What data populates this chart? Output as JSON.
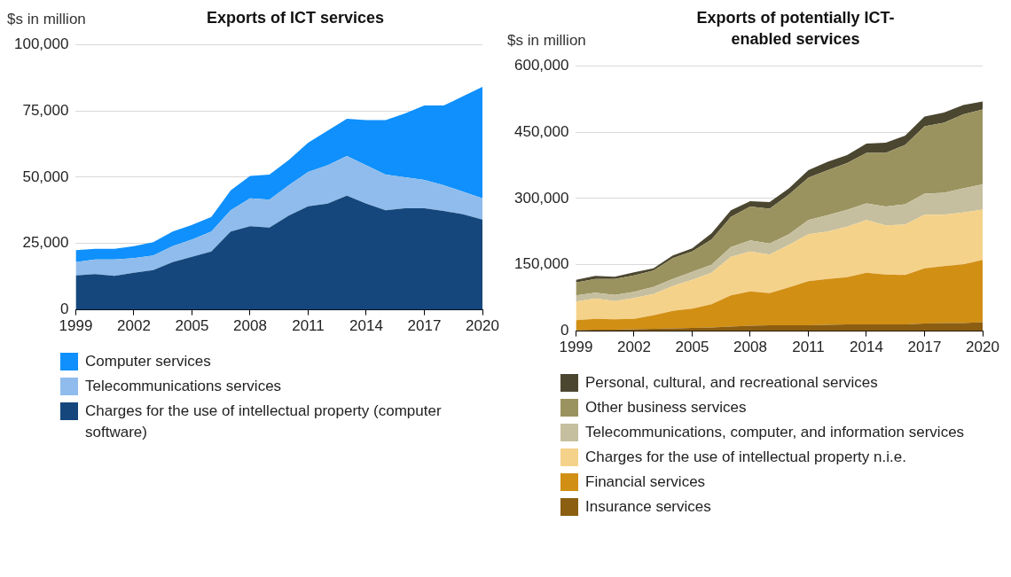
{
  "chart_data": [
    {
      "type": "area",
      "title": "Exports of ICT services",
      "ylabel": "$s in million",
      "x": [
        1999,
        2000,
        2001,
        2002,
        2003,
        2004,
        2005,
        2006,
        2007,
        2008,
        2009,
        2010,
        2011,
        2012,
        2013,
        2014,
        2015,
        2016,
        2017,
        2018,
        2019,
        2020
      ],
      "stacked": true,
      "xlim": [
        1999,
        2020
      ],
      "xticks": [
        1999,
        2002,
        2005,
        2008,
        2011,
        2014,
        2017,
        2020
      ],
      "ylim": [
        0,
        100000
      ],
      "yticks": [
        {
          "value": 0,
          "label": "0"
        },
        {
          "value": 25000,
          "label": "25,000"
        },
        {
          "value": 50000,
          "label": "50,000"
        },
        {
          "value": 75000,
          "label": "75,000"
        },
        {
          "value": 100000,
          "label": "100,000"
        }
      ],
      "grid": "y",
      "legend": "bottom",
      "series": [
        {
          "name": "Charges for the use of intellectual property (computer software)",
          "color": "#15477c",
          "values": [
            13000,
            13500,
            12800,
            14000,
            15000,
            18000,
            20000,
            22000,
            29500,
            31500,
            31000,
            35500,
            39000,
            40000,
            43000,
            40000,
            37500,
            38300,
            38300,
            37300,
            36000,
            34000
          ]
        },
        {
          "name": "Telecommunications services",
          "color": "#8fbcec",
          "values": [
            5000,
            5500,
            6200,
            5500,
            5500,
            6000,
            6500,
            7500,
            8000,
            10500,
            10500,
            11500,
            13000,
            14500,
            15000,
            14500,
            13500,
            11700,
            10700,
            9700,
            8500,
            8000
          ]
        },
        {
          "name": "Computer services",
          "color": "#0f90fc",
          "values": [
            4500,
            4000,
            4000,
            4500,
            5000,
            5500,
            5500,
            5500,
            7500,
            8500,
            9500,
            9500,
            11000,
            13000,
            14000,
            17000,
            20500,
            24000,
            28000,
            30000,
            36000,
            42000
          ]
        }
      ]
    },
    {
      "type": "area",
      "title": "Exports of potentially ICT-enabled services",
      "ylabel": "$s in million",
      "x": [
        1999,
        2000,
        2001,
        2002,
        2003,
        2004,
        2005,
        2006,
        2007,
        2008,
        2009,
        2010,
        2011,
        2012,
        2013,
        2014,
        2015,
        2016,
        2017,
        2018,
        2019,
        2020
      ],
      "stacked": true,
      "xlim": [
        1999,
        2020
      ],
      "xticks": [
        1999,
        2002,
        2005,
        2008,
        2011,
        2014,
        2017,
        2020
      ],
      "ylim": [
        0,
        600000
      ],
      "yticks": [
        {
          "value": 0,
          "label": "0"
        },
        {
          "value": 150000,
          "label": "150,000"
        },
        {
          "value": 300000,
          "label": "300,000"
        },
        {
          "value": 450000,
          "label": "450,000"
        },
        {
          "value": 600000,
          "label": "600,000"
        }
      ],
      "grid": "y",
      "legend": "bottom",
      "series": [
        {
          "name": "Insurance services",
          "color": "#8b5e11",
          "values": [
            2000,
            3000,
            3000,
            4000,
            5000,
            6000,
            7000,
            8000,
            10000,
            12000,
            13000,
            13000,
            13000,
            14000,
            15000,
            15000,
            15000,
            15000,
            17000,
            18000,
            18000,
            20000
          ]
        },
        {
          "name": "Financial services",
          "color": "#d18f14",
          "values": [
            23000,
            25000,
            24000,
            24000,
            31000,
            40000,
            44000,
            53000,
            71000,
            78000,
            73000,
            86000,
            100000,
            104000,
            107000,
            117000,
            113000,
            112000,
            125000,
            129000,
            133000,
            141000
          ]
        },
        {
          "name": "Charges for the use of intellectual property n.i.e.",
          "color": "#f5d28a",
          "values": [
            42000,
            46000,
            41000,
            47000,
            48000,
            56000,
            65000,
            71000,
            87000,
            90000,
            87000,
            96000,
            106000,
            107000,
            114000,
            119000,
            111000,
            114000,
            121000,
            116000,
            117000,
            114000
          ]
        },
        {
          "name": "Telecommunications, computer, and information services",
          "color": "#c6bf9f",
          "values": [
            14000,
            13000,
            14000,
            14000,
            16000,
            16000,
            18000,
            18000,
            22000,
            25000,
            25000,
            24000,
            32000,
            37000,
            38000,
            38000,
            43000,
            46000,
            48000,
            50000,
            55000,
            57000
          ]
        },
        {
          "name": "Other business services",
          "color": "#9b935f",
          "values": [
            29000,
            31000,
            36000,
            37000,
            37000,
            47000,
            46000,
            57000,
            68000,
            77000,
            79000,
            90000,
            96000,
            102000,
            106000,
            114000,
            121000,
            134000,
            152000,
            158000,
            167000,
            169000
          ]
        },
        {
          "name": "Personal, cultural, and recreational services",
          "color": "#4b4630",
          "values": [
            6000,
            7000,
            5000,
            7000,
            5000,
            6000,
            7000,
            14000,
            15000,
            12000,
            15000,
            14000,
            17000,
            19000,
            18000,
            21000,
            23000,
            21000,
            22000,
            23000,
            21000,
            18000
          ]
        }
      ]
    }
  ]
}
